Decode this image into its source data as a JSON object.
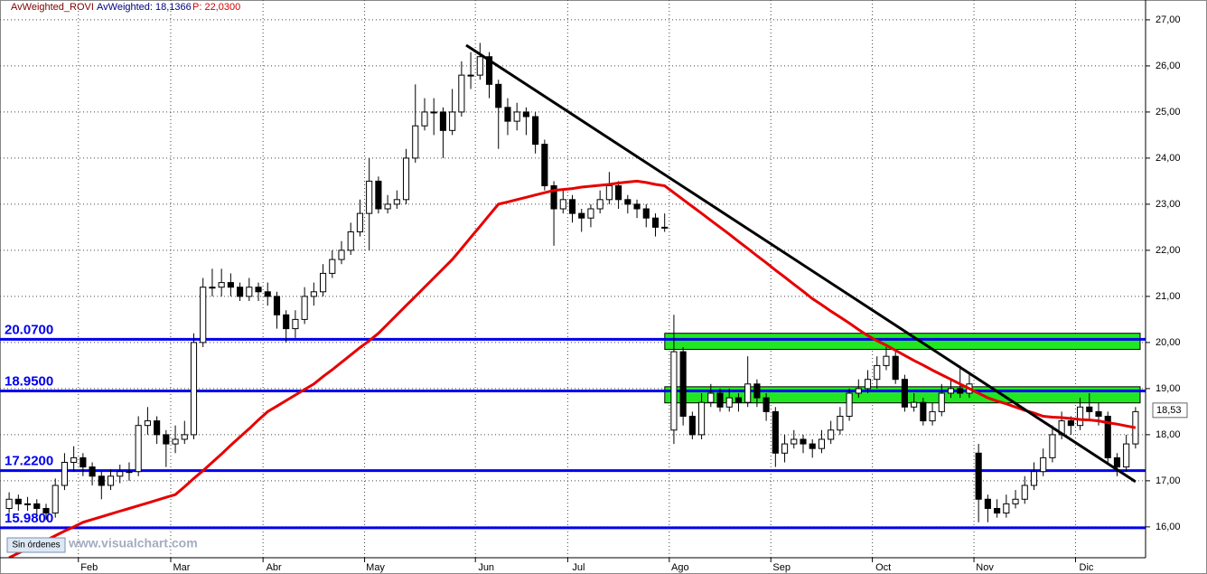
{
  "chart_data": {
    "type": "candlestick",
    "header": {
      "symbol": "AvWeighted_ROVI",
      "indicator": "AvWeighted: 18,1366",
      "price": "P: 22,0300"
    },
    "categories": [
      null,
      null,
      null,
      null,
      null,
      null,
      null,
      null,
      "Feb",
      null,
      null,
      null,
      null,
      null,
      null,
      null,
      null,
      null,
      "Mar",
      null,
      null,
      null,
      null,
      null,
      null,
      null,
      null,
      null,
      "Abr",
      null,
      null,
      null,
      null,
      null,
      null,
      null,
      null,
      null,
      null,
      "May",
      null,
      null,
      null,
      null,
      null,
      null,
      null,
      null,
      null,
      null,
      null,
      "Jun",
      null,
      null,
      null,
      null,
      null,
      null,
      null,
      null,
      null,
      "Jul",
      null,
      null,
      null,
      null,
      null,
      null,
      null,
      null,
      null,
      null,
      "Ago",
      null,
      null,
      null,
      null,
      null,
      null,
      null,
      null,
      null,
      null,
      "Sep",
      null,
      null,
      null,
      null,
      null,
      null,
      null,
      null,
      null,
      null,
      "Oct",
      null,
      null,
      null,
      null,
      null,
      null,
      null,
      null,
      null,
      null,
      "Nov",
      null,
      null,
      null,
      null,
      null,
      null,
      null,
      null,
      null,
      null,
      "Dic",
      null,
      null,
      null,
      null,
      null,
      null
    ],
    "open": [
      16.4,
      16.6,
      16.5,
      16.5,
      16.4,
      16.3,
      16.9,
      17.4,
      17.5,
      17.3,
      17.1,
      16.9,
      17.1,
      17.2,
      17.2,
      18.2,
      18.3,
      18.0,
      17.8,
      17.9,
      18.0,
      20.0,
      21.2,
      21.2,
      21.3,
      21.2,
      21.0,
      21.2,
      21.1,
      21.0,
      20.6,
      20.3,
      20.5,
      21.0,
      21.1,
      21.5,
      21.8,
      22.0,
      22.4,
      22.8,
      23.5,
      22.9,
      23.0,
      23.1,
      24.0,
      24.7,
      25.0,
      25.0,
      24.6,
      25.0,
      25.8,
      25.8,
      26.2,
      25.6,
      25.1,
      24.8,
      25.0,
      24.9,
      24.3,
      23.4,
      22.9,
      23.1,
      22.8,
      22.7,
      22.9,
      23.1,
      23.4,
      23.1,
      23.0,
      22.9,
      22.7,
      22.5,
      18.1,
      19.8,
      18.4,
      18.0,
      18.7,
      18.9,
      18.6,
      18.8,
      18.7,
      19.1,
      18.8,
      18.5,
      17.6,
      17.8,
      17.9,
      17.8,
      17.7,
      17.9,
      18.1,
      18.4,
      18.9,
      19.0,
      19.2,
      19.5,
      19.7,
      19.2,
      18.6,
      18.7,
      18.3,
      18.5,
      18.9,
      19.0,
      18.9,
      17.6,
      16.6,
      16.4,
      16.3,
      16.5,
      16.6,
      16.9,
      17.2,
      17.5,
      18.0,
      18.3,
      18.2,
      18.6,
      18.5,
      18.4,
      17.5,
      17.3,
      17.8
    ],
    "high": [
      16.75,
      16.7,
      16.65,
      16.6,
      16.5,
      17.05,
      17.6,
      17.75,
      17.6,
      17.4,
      17.2,
      17.25,
      17.35,
      17.4,
      18.4,
      18.6,
      18.4,
      18.1,
      18.2,
      18.3,
      20.2,
      21.4,
      21.6,
      21.6,
      21.5,
      21.3,
      21.4,
      21.3,
      21.3,
      21.1,
      20.7,
      20.7,
      21.2,
      21.3,
      21.7,
      22.0,
      22.2,
      22.6,
      23.1,
      24.0,
      23.6,
      23.2,
      23.3,
      24.2,
      25.6,
      25.3,
      25.3,
      25.1,
      25.5,
      26.1,
      26.3,
      26.5,
      26.3,
      25.7,
      25.3,
      25.2,
      25.1,
      25.0,
      24.4,
      23.5,
      23.3,
      23.2,
      22.9,
      23.0,
      23.3,
      23.7,
      23.5,
      23.2,
      23.1,
      23.0,
      22.8,
      22.8,
      20.6,
      19.9,
      18.5,
      18.9,
      19.1,
      19.0,
      19.0,
      18.9,
      19.7,
      19.2,
      18.9,
      18.6,
      18.0,
      18.1,
      18.0,
      17.9,
      18.1,
      18.3,
      18.6,
      19.0,
      19.2,
      19.4,
      19.7,
      19.9,
      19.8,
      19.3,
      18.9,
      18.8,
      18.7,
      19.1,
      19.2,
      19.5,
      19.3,
      17.8,
      16.7,
      16.6,
      16.7,
      16.8,
      17.1,
      17.4,
      17.7,
      18.2,
      18.5,
      18.4,
      18.8,
      18.9,
      18.7,
      18.5,
      17.6,
      18.0,
      18.6
    ],
    "low": [
      16.3,
      16.35,
      16.35,
      16.25,
      16.15,
      16.2,
      16.8,
      17.2,
      17.1,
      16.9,
      16.6,
      16.8,
      16.95,
      17.0,
      17.1,
      18.0,
      17.8,
      17.3,
      17.6,
      17.8,
      17.9,
      19.9,
      21.0,
      21.0,
      21.0,
      20.9,
      20.9,
      20.9,
      20.8,
      20.3,
      20.0,
      20.1,
      20.4,
      20.8,
      21.0,
      21.4,
      21.7,
      21.9,
      22.3,
      22.0,
      22.8,
      22.8,
      22.9,
      23.0,
      23.9,
      24.6,
      24.5,
      24.0,
      24.5,
      24.9,
      25.5,
      25.7,
      25.3,
      24.2,
      24.5,
      24.6,
      24.5,
      24.1,
      23.3,
      22.1,
      22.8,
      22.6,
      22.4,
      22.5,
      22.8,
      23.0,
      22.9,
      22.8,
      22.7,
      22.5,
      22.3,
      22.4,
      17.8,
      18.2,
      17.9,
      17.9,
      18.6,
      18.5,
      18.5,
      18.5,
      18.6,
      18.6,
      18.3,
      17.3,
      17.4,
      17.7,
      17.6,
      17.5,
      17.6,
      17.8,
      18.0,
      18.3,
      18.8,
      18.9,
      19.0,
      19.4,
      19.1,
      18.5,
      18.5,
      18.2,
      18.2,
      18.4,
      18.8,
      18.8,
      18.8,
      16.1,
      16.1,
      16.2,
      16.2,
      16.4,
      16.5,
      16.8,
      17.1,
      17.4,
      17.9,
      18.0,
      18.1,
      18.3,
      18.2,
      17.4,
      17.1,
      17.2,
      17.7
    ],
    "close": [
      16.6,
      16.5,
      16.5,
      16.4,
      16.3,
      16.9,
      17.4,
      17.5,
      17.3,
      17.1,
      16.9,
      17.1,
      17.2,
      17.2,
      18.2,
      18.3,
      18.0,
      17.8,
      17.9,
      18.0,
      20.0,
      21.2,
      21.2,
      21.3,
      21.2,
      21.0,
      21.2,
      21.1,
      21.0,
      20.6,
      20.3,
      20.5,
      21.0,
      21.1,
      21.5,
      21.8,
      22.0,
      22.4,
      22.8,
      23.5,
      22.9,
      23.0,
      23.1,
      24.0,
      24.7,
      25.0,
      25.0,
      24.6,
      25.0,
      25.8,
      25.8,
      26.2,
      25.6,
      25.1,
      24.8,
      25.0,
      24.9,
      24.3,
      23.4,
      22.9,
      23.1,
      22.8,
      22.7,
      22.9,
      23.1,
      23.4,
      23.1,
      23.0,
      22.9,
      22.7,
      22.5,
      22.5,
      19.8,
      18.4,
      18.0,
      18.7,
      18.9,
      18.6,
      18.8,
      18.7,
      19.1,
      18.8,
      18.5,
      17.6,
      17.8,
      17.9,
      17.8,
      17.7,
      17.9,
      18.1,
      18.4,
      18.9,
      19.0,
      19.2,
      19.5,
      19.7,
      19.2,
      18.6,
      18.7,
      18.3,
      18.5,
      18.9,
      19.0,
      18.9,
      19.1,
      16.6,
      16.4,
      16.3,
      16.5,
      16.6,
      16.9,
      17.2,
      17.5,
      18.0,
      18.3,
      18.2,
      18.6,
      18.5,
      18.4,
      17.5,
      17.3,
      17.8,
      18.5
    ],
    "average": {
      "color": "#e60000",
      "values": [
        15.33,
        15.43,
        15.52,
        15.62,
        15.71,
        15.81,
        15.91,
        16.0,
        16.1,
        16.16,
        16.22,
        16.28,
        16.34,
        16.4,
        16.46,
        16.52,
        16.58,
        16.64,
        16.7,
        16.87,
        17.05,
        17.22,
        17.4,
        17.58,
        17.77,
        17.95,
        18.13,
        18.32,
        18.5,
        18.62,
        18.74,
        18.86,
        18.98,
        19.1,
        19.26,
        19.41,
        19.57,
        19.73,
        19.89,
        20.04,
        20.2,
        20.4,
        20.6,
        20.8,
        21.0,
        21.2,
        21.4,
        21.6,
        21.8,
        22.04,
        22.28,
        22.52,
        22.76,
        23.0,
        23.05,
        23.1,
        23.15,
        23.2,
        23.25,
        23.3,
        23.32,
        23.34,
        23.37,
        23.39,
        23.41,
        23.43,
        23.46,
        23.48,
        23.5,
        23.47,
        23.43,
        23.4,
        23.25,
        23.1,
        22.95,
        22.8,
        22.65,
        22.5,
        22.35,
        22.19,
        22.04,
        21.88,
        21.73,
        21.57,
        21.42,
        21.26,
        21.11,
        20.95,
        20.82,
        20.68,
        20.55,
        20.42,
        20.28,
        20.15,
        20.04,
        19.94,
        19.83,
        19.72,
        19.61,
        19.51,
        19.4,
        19.3,
        19.2,
        19.1,
        19.0,
        18.9,
        18.8,
        18.73,
        18.67,
        18.6,
        18.53,
        18.47,
        18.4,
        18.38,
        18.37,
        18.35,
        18.33,
        18.32,
        18.3,
        18.26,
        18.23,
        18.19,
        18.15
      ]
    },
    "trendline": {
      "x": [
        49.5,
        122
      ],
      "y": [
        26.45,
        16.98
      ],
      "color": "#000000"
    },
    "zones": [
      {
        "from": 19.85,
        "to": 20.2,
        "start": 72
      },
      {
        "from": 18.69,
        "to": 19.04,
        "start": 72
      }
    ],
    "zone_color": "#22e622",
    "hlines": [
      {
        "value": 20.07,
        "label": "20.0700"
      },
      {
        "value": 18.95,
        "label": "18.9500"
      },
      {
        "value": 17.22,
        "label": "17.2200"
      },
      {
        "value": 15.98,
        "label": "15.9800"
      }
    ],
    "hline_color": "#0000ee",
    "last_price": {
      "value": 18.53,
      "label": "18,53"
    },
    "ylim": [
      15.37,
      27.43
    ],
    "yticks": [
      {
        "value": 16,
        "label": "16,00"
      },
      {
        "value": 17,
        "label": "17,00"
      },
      {
        "value": 18,
        "label": "18,00"
      },
      {
        "value": 19,
        "label": "19,00"
      },
      {
        "value": 20,
        "label": "20,00"
      },
      {
        "value": 21,
        "label": "21,00"
      },
      {
        "value": 22,
        "label": "22,00"
      },
      {
        "value": 23,
        "label": "23,00"
      },
      {
        "value": 24,
        "label": "24,00"
      },
      {
        "value": 25,
        "label": "25,00"
      },
      {
        "value": 26,
        "label": "26,00"
      },
      {
        "value": 27,
        "label": "27,00"
      }
    ],
    "grid": true,
    "badge": "Sin órdenes",
    "watermark": "www.visualchart.com"
  }
}
